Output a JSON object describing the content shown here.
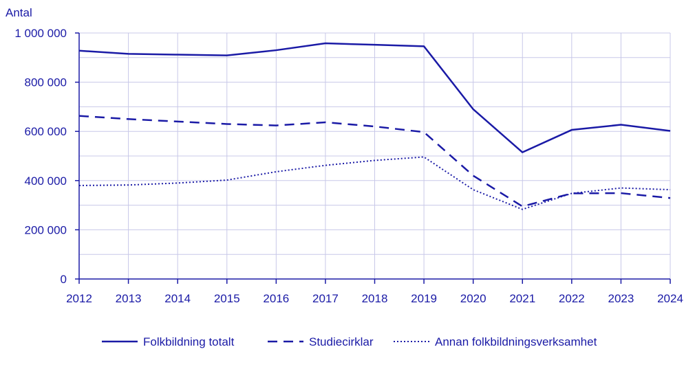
{
  "chart_data": {
    "type": "line",
    "title": "",
    "xlabel": "",
    "ylabel": "Antal",
    "x": [
      "2012",
      "2013",
      "2014",
      "2015",
      "2016",
      "2017",
      "2018",
      "2019",
      "2020",
      "2021",
      "2022",
      "2023",
      "2024"
    ],
    "ylim": [
      0,
      1000000
    ],
    "yticks": [
      0,
      200000,
      400000,
      600000,
      800000,
      1000000
    ],
    "ytick_labels": [
      "0",
      "200 000",
      "400 000",
      "600 000",
      "800 000",
      "1 000 000"
    ],
    "grid": true,
    "legend_position": "bottom",
    "series": [
      {
        "name": "Folkbildning totalt",
        "style": "solid",
        "values": [
          928000,
          915000,
          912000,
          909000,
          930000,
          958000,
          952000,
          946000,
          690000,
          515000,
          606000,
          627000,
          602000
        ]
      },
      {
        "name": "Studiecirklar",
        "style": "dashed",
        "values": [
          663000,
          650000,
          640000,
          630000,
          624000,
          637000,
          620000,
          597000,
          420000,
          295000,
          348000,
          349000,
          329000
        ]
      },
      {
        "name": "Annan folkbildningsverksamhet",
        "style": "dotted",
        "values": [
          380000,
          382000,
          390000,
          402000,
          436000,
          462000,
          482000,
          496000,
          363000,
          283000,
          348000,
          370000,
          363000
        ]
      }
    ],
    "colors": {
      "line": "#1a1aa6",
      "grid": "#c8c8e8",
      "text": "#1a1aa6"
    }
  }
}
